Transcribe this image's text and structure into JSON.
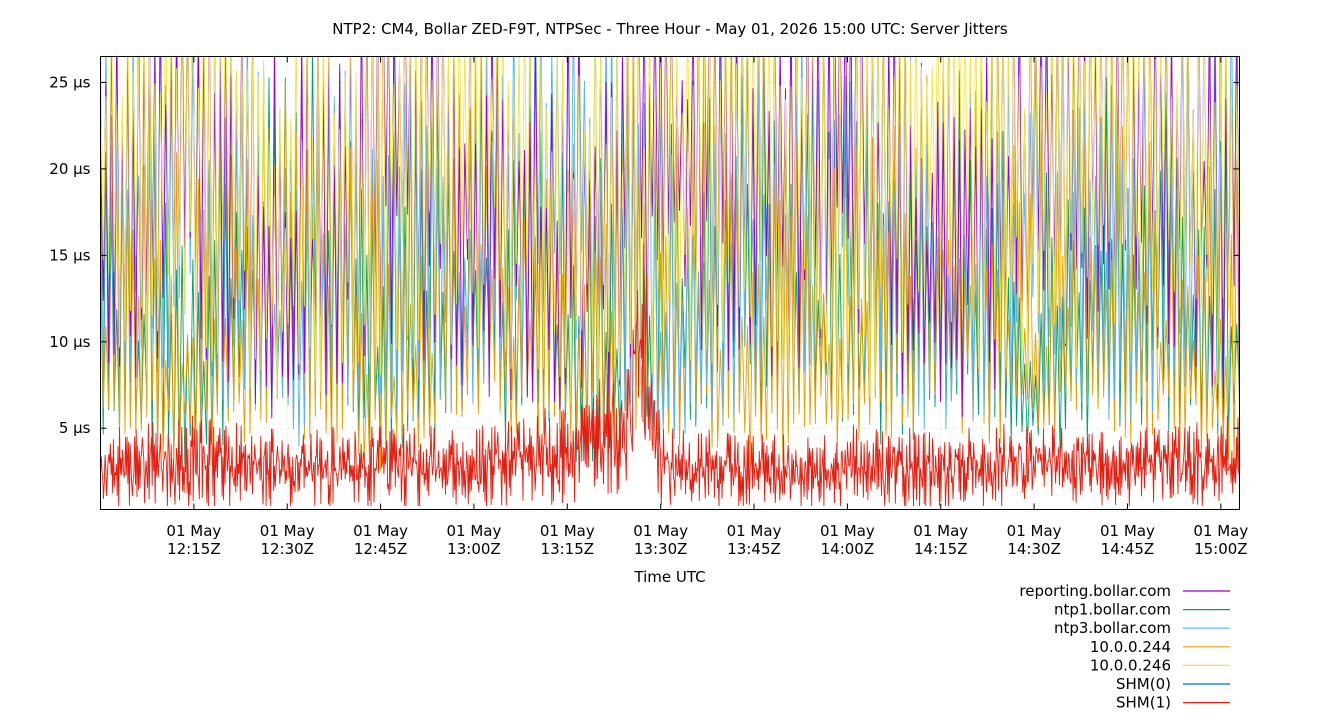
{
  "chart_data": {
    "type": "line",
    "title": "NTP2: CM4, Bollar ZED-F9T, NTPSec - Three Hour - May 01, 2026 15:00 UTC: Server Jitters",
    "xlabel": "Time UTC",
    "ylabel": "",
    "x_range": [
      "2026-05-01T12:00:00Z",
      "2026-05-01T15:03:00Z"
    ],
    "ylim": [
      0.3,
      26.5
    ],
    "y_unit": "µs",
    "yticks": [
      {
        "value": 5,
        "label": "5 µs"
      },
      {
        "value": 10,
        "label": "10 µs"
      },
      {
        "value": 15,
        "label": "15 µs"
      },
      {
        "value": 20,
        "label": "20 µs"
      },
      {
        "value": 25,
        "label": "25 µs"
      }
    ],
    "xticks": [
      {
        "time": "2026-05-01T12:15:00Z",
        "line1": "01 May",
        "line2": "12:15Z"
      },
      {
        "time": "2026-05-01T12:30:00Z",
        "line1": "01 May",
        "line2": "12:30Z"
      },
      {
        "time": "2026-05-01T12:45:00Z",
        "line1": "01 May",
        "line2": "12:45Z"
      },
      {
        "time": "2026-05-01T13:00:00Z",
        "line1": "01 May",
        "line2": "13:00Z"
      },
      {
        "time": "2026-05-01T13:15:00Z",
        "line1": "01 May",
        "line2": "13:15Z"
      },
      {
        "time": "2026-05-01T13:30:00Z",
        "line1": "01 May",
        "line2": "13:30Z"
      },
      {
        "time": "2026-05-01T13:45:00Z",
        "line1": "01 May",
        "line2": "13:45Z"
      },
      {
        "time": "2026-05-01T14:00:00Z",
        "line1": "01 May",
        "line2": "14:00Z"
      },
      {
        "time": "2026-05-01T14:15:00Z",
        "line1": "01 May",
        "line2": "14:15Z"
      },
      {
        "time": "2026-05-01T14:30:00Z",
        "line1": "01 May",
        "line2": "14:30Z"
      },
      {
        "time": "2026-05-01T14:45:00Z",
        "line1": "01 May",
        "line2": "14:45Z"
      },
      {
        "time": "2026-05-01T15:00:00Z",
        "line1": "01 May",
        "line2": "15:00Z"
      }
    ],
    "grid": true,
    "legend_position": "bottom-right, below plot",
    "series": [
      {
        "name": "reporting.bollar.com",
        "color": "#9400d3",
        "x": [
          "2026-05-01T12:00:00Z",
          "2026-05-01T12:15:00Z",
          "2026-05-01T12:30:00Z",
          "2026-05-01T12:45:00Z",
          "2026-05-01T13:00:00Z",
          "2026-05-01T13:15:00Z",
          "2026-05-01T13:30:00Z",
          "2026-05-01T13:45:00Z",
          "2026-05-01T14:00:00Z",
          "2026-05-01T14:15:00Z",
          "2026-05-01T14:30:00Z",
          "2026-05-01T14:45:00Z",
          "2026-05-01T15:00:00Z"
        ],
        "y": [
          18,
          26,
          12,
          25,
          20,
          16,
          24,
          22,
          25,
          14,
          23,
          26,
          19
        ]
      },
      {
        "name": "ntp1.bollar.com",
        "color": "#009e73",
        "x": [
          "2026-05-01T12:00:00Z",
          "2026-05-01T12:15:00Z",
          "2026-05-01T12:30:00Z",
          "2026-05-01T12:45:00Z",
          "2026-05-01T13:00:00Z",
          "2026-05-01T13:15:00Z",
          "2026-05-01T13:30:00Z",
          "2026-05-01T13:45:00Z",
          "2026-05-01T14:00:00Z",
          "2026-05-01T14:15:00Z",
          "2026-05-01T14:30:00Z",
          "2026-05-01T14:45:00Z",
          "2026-05-01T15:00:00Z"
        ],
        "y": [
          12,
          7,
          18,
          9,
          14,
          8,
          11,
          16,
          10,
          13,
          7,
          15,
          9
        ]
      },
      {
        "name": "ntp3.bollar.com",
        "color": "#56b4e9",
        "x": [
          "2026-05-01T12:00:00Z",
          "2026-05-01T12:15:00Z",
          "2026-05-01T12:30:00Z",
          "2026-05-01T12:45:00Z",
          "2026-05-01T13:00:00Z",
          "2026-05-01T13:15:00Z",
          "2026-05-01T13:30:00Z",
          "2026-05-01T13:45:00Z",
          "2026-05-01T14:00:00Z",
          "2026-05-01T14:15:00Z",
          "2026-05-01T14:30:00Z",
          "2026-05-01T14:45:00Z",
          "2026-05-01T15:00:00Z"
        ],
        "y": [
          15,
          22,
          10,
          19,
          13,
          24,
          9,
          17,
          21,
          12,
          18,
          14,
          20
        ]
      },
      {
        "name": "10.0.0.244",
        "color": "#e69f00",
        "x": [
          "2026-05-01T12:00:00Z",
          "2026-05-01T12:15:00Z",
          "2026-05-01T12:30:00Z",
          "2026-05-01T12:45:00Z",
          "2026-05-01T13:00:00Z",
          "2026-05-01T13:15:00Z",
          "2026-05-01T13:30:00Z",
          "2026-05-01T13:45:00Z",
          "2026-05-01T14:00:00Z",
          "2026-05-01T14:15:00Z",
          "2026-05-01T14:30:00Z",
          "2026-05-01T14:45:00Z",
          "2026-05-01T15:00:00Z"
        ],
        "y": [
          10,
          8,
          13,
          7,
          11,
          9,
          12,
          8,
          10,
          14,
          9,
          11,
          8
        ]
      },
      {
        "name": "10.0.0.246",
        "color": "#f0e442",
        "x": [
          "2026-05-01T12:00:00Z",
          "2026-05-01T12:15:00Z",
          "2026-05-01T12:30:00Z",
          "2026-05-01T12:45:00Z",
          "2026-05-01T13:00:00Z",
          "2026-05-01T13:15:00Z",
          "2026-05-01T13:30:00Z",
          "2026-05-01T13:45:00Z",
          "2026-05-01T14:00:00Z",
          "2026-05-01T14:15:00Z",
          "2026-05-01T14:30:00Z",
          "2026-05-01T14:45:00Z",
          "2026-05-01T15:00:00Z"
        ],
        "y": [
          20,
          25,
          16,
          23,
          26,
          18,
          21,
          25,
          17,
          24,
          22,
          26,
          21
        ]
      },
      {
        "name": "SHM(0)",
        "color": "#0072b2",
        "x": [],
        "y": []
      },
      {
        "name": "SHM(1)",
        "color": "#e51e10",
        "x": [
          "2026-05-01T12:00:00Z",
          "2026-05-01T12:15:00Z",
          "2026-05-01T12:30:00Z",
          "2026-05-01T12:45:00Z",
          "2026-05-01T13:00:00Z",
          "2026-05-01T13:15:00Z",
          "2026-05-01T13:25:00Z",
          "2026-05-01T13:27:00Z",
          "2026-05-01T13:30:00Z",
          "2026-05-01T13:45:00Z",
          "2026-05-01T14:00:00Z",
          "2026-05-01T14:15:00Z",
          "2026-05-01T14:30:00Z",
          "2026-05-01T14:45:00Z",
          "2026-05-01T15:00:00Z"
        ],
        "y": [
          2.5,
          3.0,
          2.5,
          2.8,
          2.6,
          3.5,
          5.0,
          10.0,
          2.6,
          2.4,
          2.7,
          2.5,
          2.8,
          2.6,
          3.0
        ]
      }
    ]
  }
}
